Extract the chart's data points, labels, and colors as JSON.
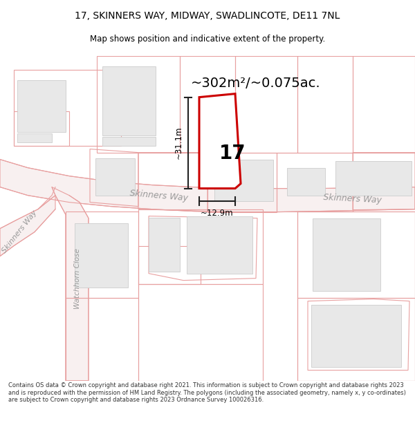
{
  "title_line1": "17, SKINNERS WAY, MIDWAY, SWADLINCOTE, DE11 7NL",
  "title_line2": "Map shows position and indicative extent of the property.",
  "area_label": "~302m²/~0.075ac.",
  "number_label": "17",
  "dim_vertical": "~31.1m",
  "dim_horizontal": "~12.9m",
  "road_label_center": "Skinners Way",
  "road_label_right": "Skinners Way",
  "road_label_left_diagonal": "Skinners Way",
  "road_label_watchhorn": "Watchhorn Close",
  "footer_text": "Contains OS data © Crown copyright and database right 2021. This information is subject to Crown copyright and database rights 2023 and is reproduced with the permission of HM Land Registry. The polygons (including the associated geometry, namely x, y co-ordinates) are subject to Crown copyright and database rights 2023 Ordnance Survey 100026316.",
  "bg_color": "#ffffff",
  "map_bg": "#ffffff",
  "road_line_color": "#e8a0a0",
  "plot_outline_color": "#cc0000",
  "building_fill": "#e8e8e8",
  "building_edge": "#cccccc",
  "dim_line_color": "#222222",
  "road_text_color": "#aaaaaa",
  "title_color": "#000000",
  "footer_color": "#333333",
  "header_bg": "#f0f0f0"
}
